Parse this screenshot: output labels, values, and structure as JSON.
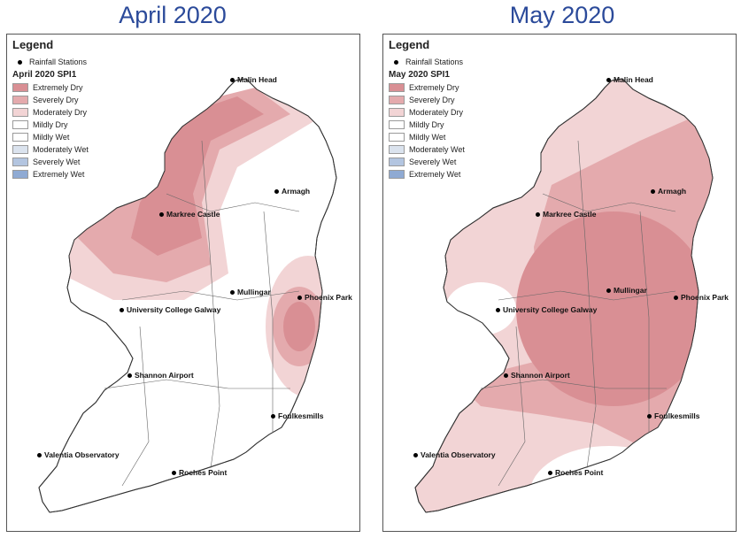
{
  "legend_title": "Legend",
  "stations_label": "Rainfall Stations",
  "categories": [
    {
      "label": "Extremely Dry",
      "color": "#d98f94"
    },
    {
      "label": "Severely Dry",
      "color": "#e4aaad"
    },
    {
      "label": "Moderately Dry",
      "color": "#f2d4d5"
    },
    {
      "label": "Mildly Dry",
      "color": "#ffffff"
    },
    {
      "label": "Mildly Wet",
      "color": "#ffffff"
    },
    {
      "label": "Moderately Wet",
      "color": "#dbe3ee"
    },
    {
      "label": "Severely Wet",
      "color": "#b3c5e0"
    },
    {
      "label": "Extremely Wet",
      "color": "#8faad3"
    }
  ],
  "maps": [
    {
      "title": "April 2020",
      "legend_subtitle": "April 2020 SPI1"
    },
    {
      "title": "May 2020",
      "legend_subtitle": "May 2020 SPI1"
    }
  ],
  "stations": [
    {
      "name": "Malin Head"
    },
    {
      "name": "Armagh"
    },
    {
      "name": "Markree Castle"
    },
    {
      "name": "Mullingar"
    },
    {
      "name": "Phoenix Park"
    },
    {
      "name": "University College Galway"
    },
    {
      "name": "Shannon Airport"
    },
    {
      "name": "Foulkesmills"
    },
    {
      "name": "Valentia Observatory"
    },
    {
      "name": "Roches Point"
    }
  ]
}
